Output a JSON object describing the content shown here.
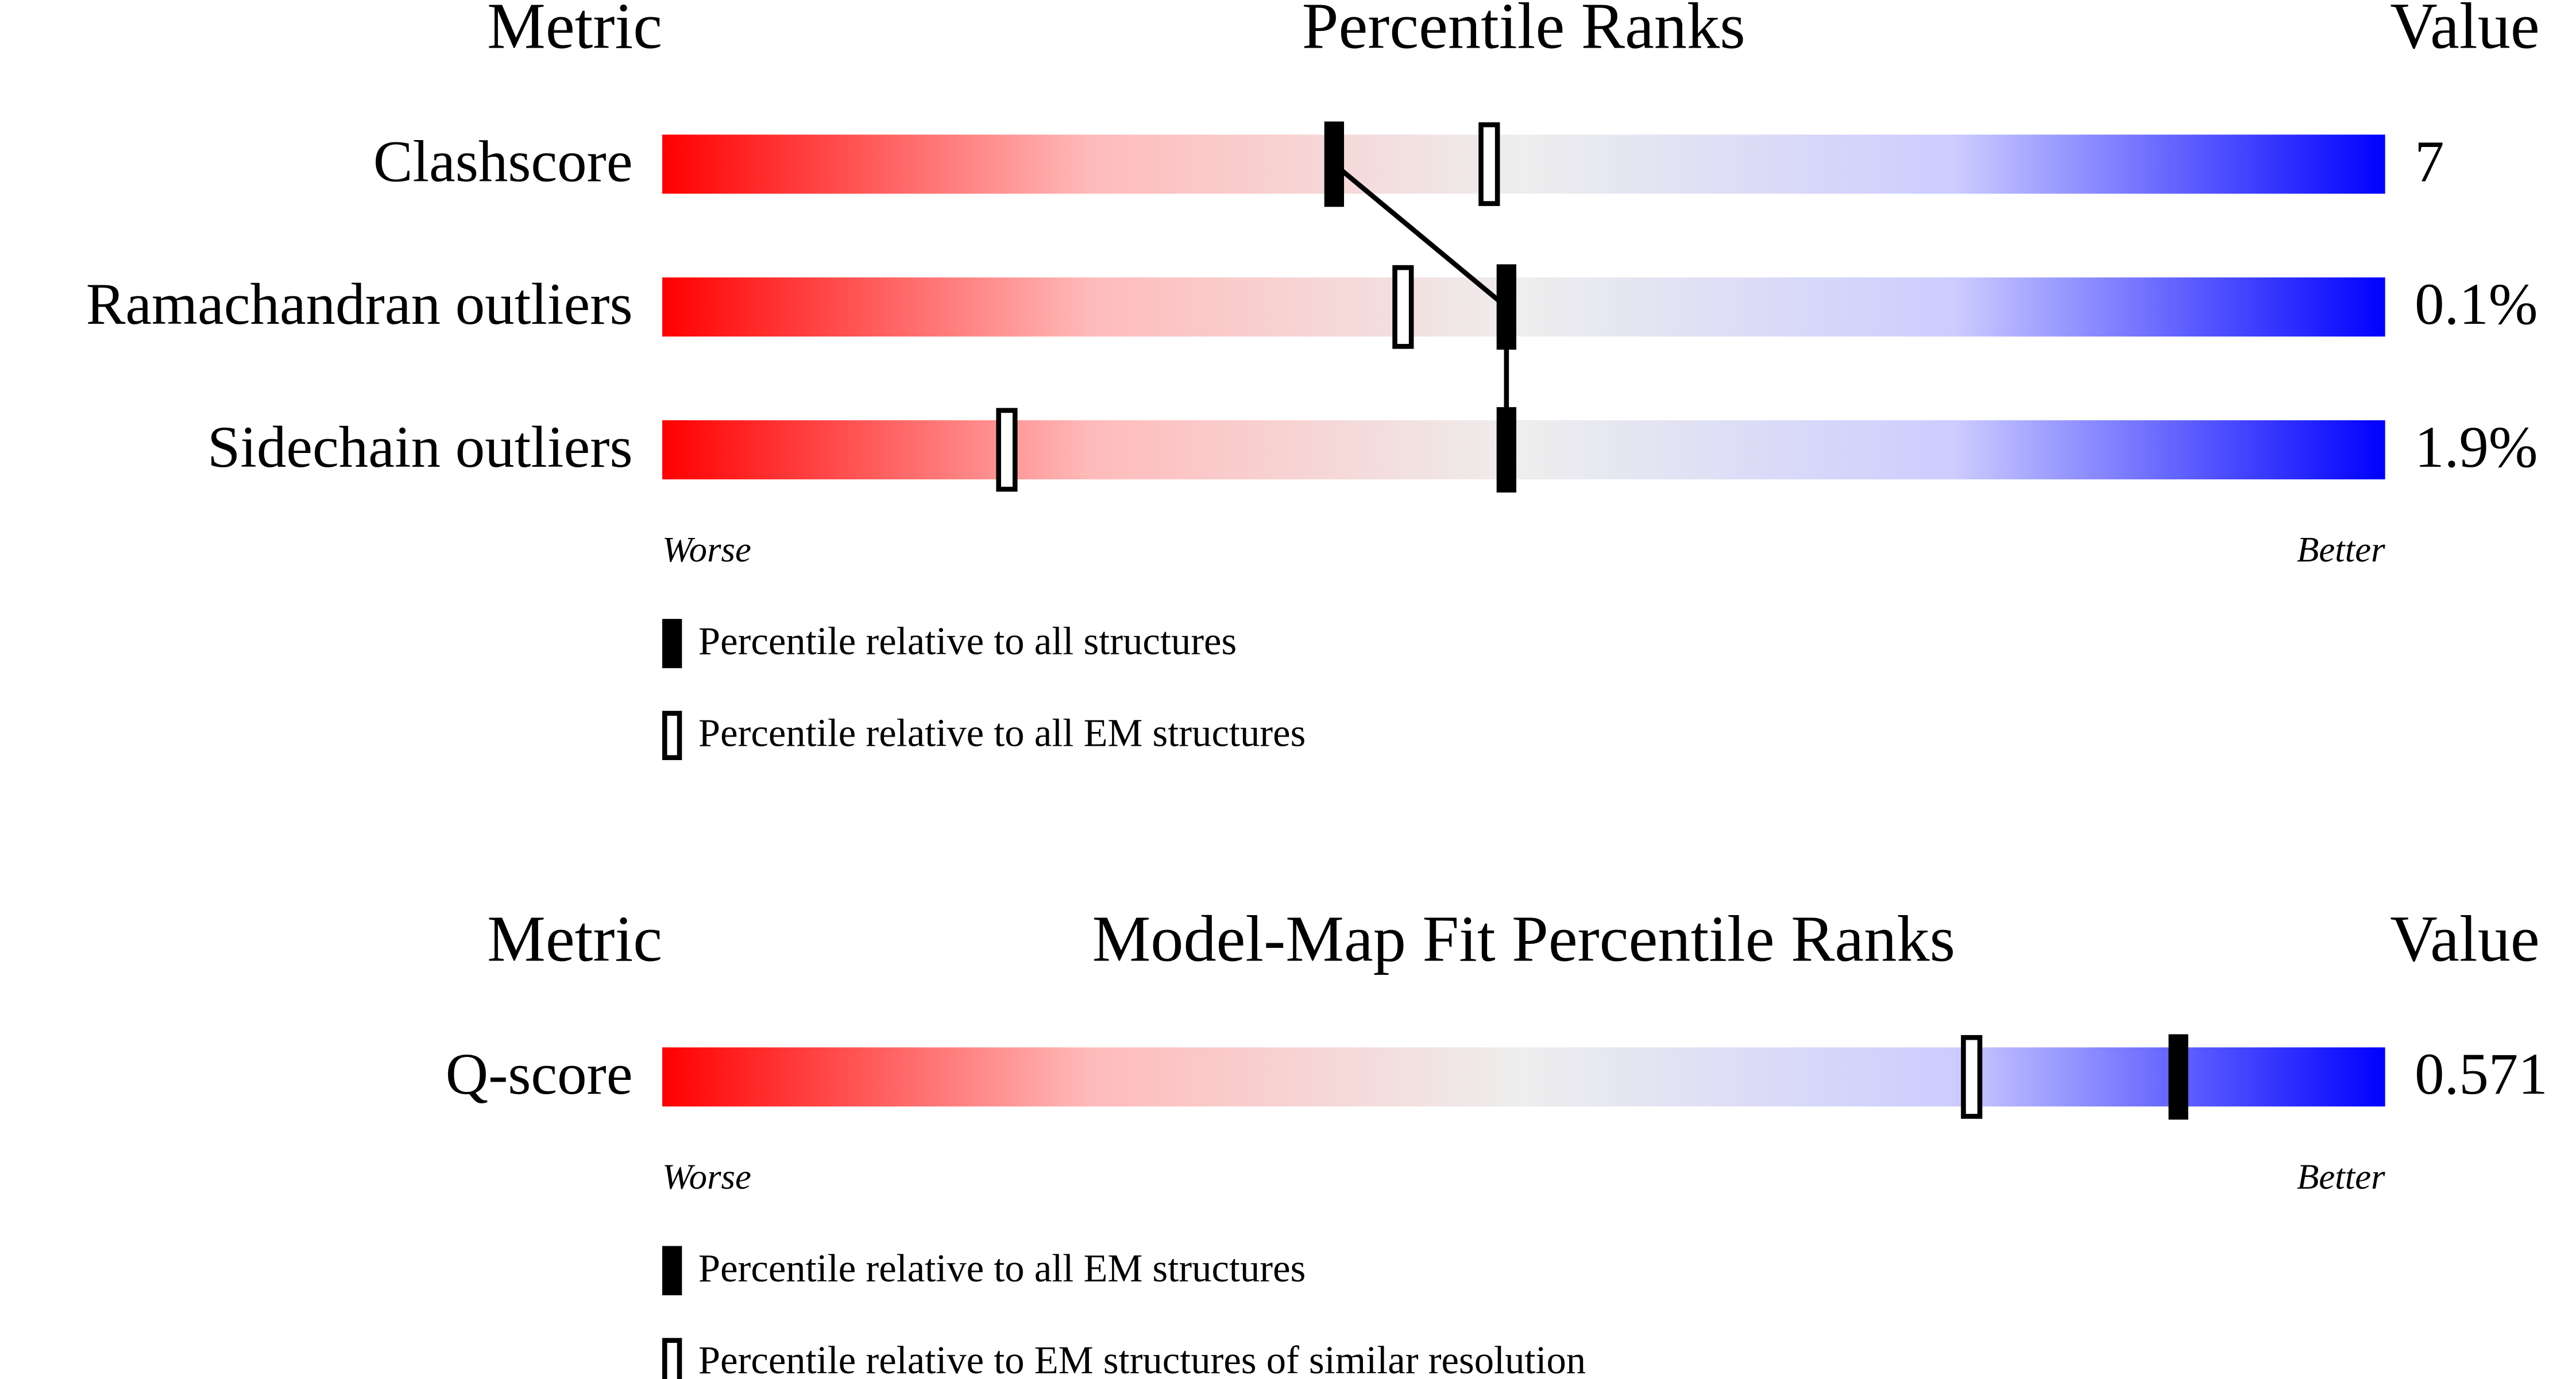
{
  "chart_data": [
    {
      "type": "percentile-slider",
      "metric_header": "Metric",
      "title": "Percentile Ranks",
      "value_header": "Value",
      "categories": [
        "Clashscore",
        "Ramachandran outliers",
        "Sidechain outliers"
      ],
      "metric_values": [
        "7",
        "0.1%",
        "1.9%"
      ],
      "series": [
        {
          "name": "Percentile relative to all structures",
          "style": "filled",
          "color": "#000000",
          "values": [
            39,
            49,
            49
          ]
        },
        {
          "name": "Percentile relative to all EM structures",
          "style": "hollow",
          "color": "#000000",
          "values": [
            48,
            43,
            20
          ]
        }
      ],
      "xlim": [
        0,
        100
      ],
      "worse_label": "Worse",
      "better_label": "Better"
    },
    {
      "type": "percentile-slider",
      "metric_header": "Metric",
      "title": "Model-Map Fit Percentile Ranks",
      "value_header": "Value",
      "categories": [
        "Q-score"
      ],
      "metric_values": [
        "0.571"
      ],
      "series": [
        {
          "name": "Percentile relative to all EM structures",
          "style": "filled",
          "color": "#000000",
          "values": [
            88
          ]
        },
        {
          "name": "Percentile relative to EM structures of similar resolution",
          "style": "hollow",
          "color": "#000000",
          "values": [
            76
          ]
        }
      ],
      "xlim": [
        0,
        100
      ],
      "worse_label": "Worse",
      "better_label": "Better"
    }
  ]
}
